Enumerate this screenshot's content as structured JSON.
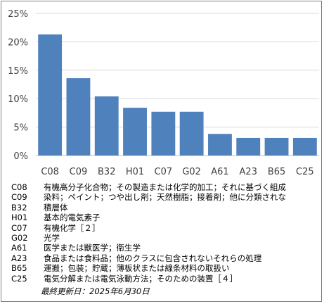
{
  "chart_data": {
    "type": "bar",
    "categories": [
      "C08",
      "C09",
      "B32",
      "H01",
      "C07",
      "G02",
      "A61",
      "A23",
      "B65",
      "C25"
    ],
    "values": [
      21.3,
      13.6,
      10.4,
      8.4,
      7.7,
      7.7,
      3.8,
      3.1,
      3.1,
      3.1
    ],
    "ylim": [
      0,
      25
    ],
    "yticks": [
      "0%",
      "5%",
      "10%",
      "15%",
      "20%",
      "25%"
    ],
    "bar_color": "#4f81bd",
    "grid": true,
    "title": "",
    "xlabel": "",
    "ylabel": ""
  },
  "legend": [
    {
      "code": "C08",
      "desc": "有機高分子化合物；その製造または化学的加工；それに基づく組成"
    },
    {
      "code": "C09",
      "desc": "染料；ペイント；つや出し剤；天然樹脂；接着剤；他に分類されな"
    },
    {
      "code": "B32",
      "desc": "積層体"
    },
    {
      "code": "H01",
      "desc": "基本的電気素子"
    },
    {
      "code": "C07",
      "desc": "有機化学［２］"
    },
    {
      "code": "G02",
      "desc": "光学"
    },
    {
      "code": "A61",
      "desc": "医学または獣医学；衛生学"
    },
    {
      "code": "A23",
      "desc": "食品または食料品；他のクラスに包含されないそれらの処理"
    },
    {
      "code": "B65",
      "desc": "運搬；包装；貯蔵；薄板状または線条材料の取扱い"
    },
    {
      "code": "C25",
      "desc": "電気分解または電気泳動方法；そのための装置［４］"
    }
  ],
  "footer": "最終更新日：2025年6月30日"
}
